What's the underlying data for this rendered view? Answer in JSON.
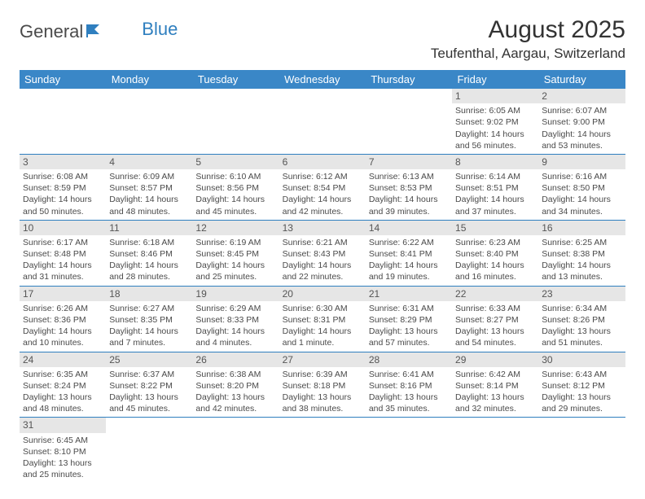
{
  "logo": {
    "part1": "General",
    "part2": "Blue"
  },
  "title": "August 2025",
  "location": "Teufenthal, Aargau, Switzerland",
  "colors": {
    "header_bg": "#3a87c7",
    "header_text": "#ffffff",
    "daynum_bg": "#e6e6e6",
    "rule": "#2f7fbf",
    "body_text": "#4a4a4a",
    "logo_blue": "#2f7fbf"
  },
  "day_headers": [
    "Sunday",
    "Monday",
    "Tuesday",
    "Wednesday",
    "Thursday",
    "Friday",
    "Saturday"
  ],
  "weeks": [
    [
      null,
      null,
      null,
      null,
      null,
      {
        "n": "1",
        "sr": "Sunrise: 6:05 AM",
        "ss": "Sunset: 9:02 PM",
        "d1": "Daylight: 14 hours",
        "d2": "and 56 minutes."
      },
      {
        "n": "2",
        "sr": "Sunrise: 6:07 AM",
        "ss": "Sunset: 9:00 PM",
        "d1": "Daylight: 14 hours",
        "d2": "and 53 minutes."
      }
    ],
    [
      {
        "n": "3",
        "sr": "Sunrise: 6:08 AM",
        "ss": "Sunset: 8:59 PM",
        "d1": "Daylight: 14 hours",
        "d2": "and 50 minutes."
      },
      {
        "n": "4",
        "sr": "Sunrise: 6:09 AM",
        "ss": "Sunset: 8:57 PM",
        "d1": "Daylight: 14 hours",
        "d2": "and 48 minutes."
      },
      {
        "n": "5",
        "sr": "Sunrise: 6:10 AM",
        "ss": "Sunset: 8:56 PM",
        "d1": "Daylight: 14 hours",
        "d2": "and 45 minutes."
      },
      {
        "n": "6",
        "sr": "Sunrise: 6:12 AM",
        "ss": "Sunset: 8:54 PM",
        "d1": "Daylight: 14 hours",
        "d2": "and 42 minutes."
      },
      {
        "n": "7",
        "sr": "Sunrise: 6:13 AM",
        "ss": "Sunset: 8:53 PM",
        "d1": "Daylight: 14 hours",
        "d2": "and 39 minutes."
      },
      {
        "n": "8",
        "sr": "Sunrise: 6:14 AM",
        "ss": "Sunset: 8:51 PM",
        "d1": "Daylight: 14 hours",
        "d2": "and 37 minutes."
      },
      {
        "n": "9",
        "sr": "Sunrise: 6:16 AM",
        "ss": "Sunset: 8:50 PM",
        "d1": "Daylight: 14 hours",
        "d2": "and 34 minutes."
      }
    ],
    [
      {
        "n": "10",
        "sr": "Sunrise: 6:17 AM",
        "ss": "Sunset: 8:48 PM",
        "d1": "Daylight: 14 hours",
        "d2": "and 31 minutes."
      },
      {
        "n": "11",
        "sr": "Sunrise: 6:18 AM",
        "ss": "Sunset: 8:46 PM",
        "d1": "Daylight: 14 hours",
        "d2": "and 28 minutes."
      },
      {
        "n": "12",
        "sr": "Sunrise: 6:19 AM",
        "ss": "Sunset: 8:45 PM",
        "d1": "Daylight: 14 hours",
        "d2": "and 25 minutes."
      },
      {
        "n": "13",
        "sr": "Sunrise: 6:21 AM",
        "ss": "Sunset: 8:43 PM",
        "d1": "Daylight: 14 hours",
        "d2": "and 22 minutes."
      },
      {
        "n": "14",
        "sr": "Sunrise: 6:22 AM",
        "ss": "Sunset: 8:41 PM",
        "d1": "Daylight: 14 hours",
        "d2": "and 19 minutes."
      },
      {
        "n": "15",
        "sr": "Sunrise: 6:23 AM",
        "ss": "Sunset: 8:40 PM",
        "d1": "Daylight: 14 hours",
        "d2": "and 16 minutes."
      },
      {
        "n": "16",
        "sr": "Sunrise: 6:25 AM",
        "ss": "Sunset: 8:38 PM",
        "d1": "Daylight: 14 hours",
        "d2": "and 13 minutes."
      }
    ],
    [
      {
        "n": "17",
        "sr": "Sunrise: 6:26 AM",
        "ss": "Sunset: 8:36 PM",
        "d1": "Daylight: 14 hours",
        "d2": "and 10 minutes."
      },
      {
        "n": "18",
        "sr": "Sunrise: 6:27 AM",
        "ss": "Sunset: 8:35 PM",
        "d1": "Daylight: 14 hours",
        "d2": "and 7 minutes."
      },
      {
        "n": "19",
        "sr": "Sunrise: 6:29 AM",
        "ss": "Sunset: 8:33 PM",
        "d1": "Daylight: 14 hours",
        "d2": "and 4 minutes."
      },
      {
        "n": "20",
        "sr": "Sunrise: 6:30 AM",
        "ss": "Sunset: 8:31 PM",
        "d1": "Daylight: 14 hours",
        "d2": "and 1 minute."
      },
      {
        "n": "21",
        "sr": "Sunrise: 6:31 AM",
        "ss": "Sunset: 8:29 PM",
        "d1": "Daylight: 13 hours",
        "d2": "and 57 minutes."
      },
      {
        "n": "22",
        "sr": "Sunrise: 6:33 AM",
        "ss": "Sunset: 8:27 PM",
        "d1": "Daylight: 13 hours",
        "d2": "and 54 minutes."
      },
      {
        "n": "23",
        "sr": "Sunrise: 6:34 AM",
        "ss": "Sunset: 8:26 PM",
        "d1": "Daylight: 13 hours",
        "d2": "and 51 minutes."
      }
    ],
    [
      {
        "n": "24",
        "sr": "Sunrise: 6:35 AM",
        "ss": "Sunset: 8:24 PM",
        "d1": "Daylight: 13 hours",
        "d2": "and 48 minutes."
      },
      {
        "n": "25",
        "sr": "Sunrise: 6:37 AM",
        "ss": "Sunset: 8:22 PM",
        "d1": "Daylight: 13 hours",
        "d2": "and 45 minutes."
      },
      {
        "n": "26",
        "sr": "Sunrise: 6:38 AM",
        "ss": "Sunset: 8:20 PM",
        "d1": "Daylight: 13 hours",
        "d2": "and 42 minutes."
      },
      {
        "n": "27",
        "sr": "Sunrise: 6:39 AM",
        "ss": "Sunset: 8:18 PM",
        "d1": "Daylight: 13 hours",
        "d2": "and 38 minutes."
      },
      {
        "n": "28",
        "sr": "Sunrise: 6:41 AM",
        "ss": "Sunset: 8:16 PM",
        "d1": "Daylight: 13 hours",
        "d2": "and 35 minutes."
      },
      {
        "n": "29",
        "sr": "Sunrise: 6:42 AM",
        "ss": "Sunset: 8:14 PM",
        "d1": "Daylight: 13 hours",
        "d2": "and 32 minutes."
      },
      {
        "n": "30",
        "sr": "Sunrise: 6:43 AM",
        "ss": "Sunset: 8:12 PM",
        "d1": "Daylight: 13 hours",
        "d2": "and 29 minutes."
      }
    ],
    [
      {
        "n": "31",
        "sr": "Sunrise: 6:45 AM",
        "ss": "Sunset: 8:10 PM",
        "d1": "Daylight: 13 hours",
        "d2": "and 25 minutes."
      },
      null,
      null,
      null,
      null,
      null,
      null
    ]
  ]
}
